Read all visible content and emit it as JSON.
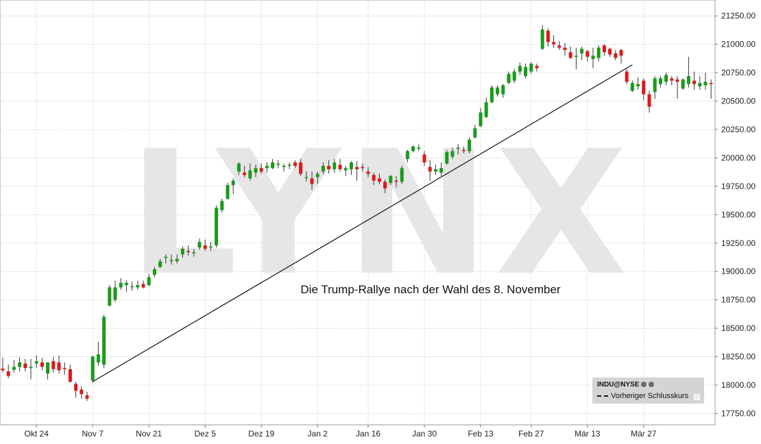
{
  "chart_data": {
    "type": "candlestick",
    "title": "",
    "watermark": "LYNX",
    "annotation": "Die Trump-Rallye nach der Wahl des 8. November",
    "ylim": [
      17650,
      21390
    ],
    "y_ticks": [
      "17750.00",
      "18000.00",
      "18250.00",
      "18500.00",
      "18750.00",
      "19000.00",
      "19250.00",
      "19500.00",
      "19750.00",
      "20000.00",
      "20250.00",
      "20500.00",
      "20750.00",
      "21000.00",
      "21250.00"
    ],
    "y_tick_values": [
      17750,
      18000,
      18250,
      18500,
      18750,
      19000,
      19250,
      19500,
      19750,
      20000,
      20250,
      20500,
      20750,
      21000,
      21250
    ],
    "x_ticks": [
      {
        "label": "Okt 24",
        "index": 6
      },
      {
        "label": "Nov 7",
        "index": 16
      },
      {
        "label": "Nov 21",
        "index": 26
      },
      {
        "label": "Dez 5",
        "index": 36
      },
      {
        "label": "Dez 19",
        "index": 46
      },
      {
        "label": "Jan 2",
        "index": 56
      },
      {
        "label": "Jan 16",
        "index": 65
      },
      {
        "label": "Jan 30",
        "index": 75
      },
      {
        "label": "Feb 13",
        "index": 85
      },
      {
        "label": "Feb 27",
        "index": 94
      },
      {
        "label": "Mär 13",
        "index": 104
      },
      {
        "label": "Mär 27",
        "index": 114
      }
    ],
    "candles": [
      {
        "o": 18145,
        "h": 18240,
        "l": 18110,
        "c": 18130
      },
      {
        "o": 18120,
        "h": 18180,
        "l": 18060,
        "c": 18080
      },
      {
        "o": 18135,
        "h": 18220,
        "l": 18110,
        "c": 18160
      },
      {
        "o": 18160,
        "h": 18245,
        "l": 18120,
        "c": 18200
      },
      {
        "o": 18190,
        "h": 18230,
        "l": 18120,
        "c": 18150
      },
      {
        "o": 18150,
        "h": 18230,
        "l": 18050,
        "c": 18160
      },
      {
        "o": 18190,
        "h": 18260,
        "l": 18150,
        "c": 18210
      },
      {
        "o": 18200,
        "h": 18240,
        "l": 18130,
        "c": 18160
      },
      {
        "o": 18100,
        "h": 18200,
        "l": 18050,
        "c": 18200
      },
      {
        "o": 18210,
        "h": 18250,
        "l": 18110,
        "c": 18140
      },
      {
        "o": 18200,
        "h": 18260,
        "l": 18100,
        "c": 18130
      },
      {
        "o": 18150,
        "h": 18200,
        "l": 18090,
        "c": 18140
      },
      {
        "o": 18140,
        "h": 18180,
        "l": 18020,
        "c": 18030
      },
      {
        "o": 18010,
        "h": 18030,
        "l": 17890,
        "c": 17950
      },
      {
        "o": 17960,
        "h": 17990,
        "l": 17880,
        "c": 17920
      },
      {
        "o": 17910,
        "h": 17940,
        "l": 17860,
        "c": 17880
      },
      {
        "o": 18040,
        "h": 18260,
        "l": 18020,
        "c": 18250
      },
      {
        "o": 18200,
        "h": 18380,
        "l": 18170,
        "c": 18270
      },
      {
        "o": 18180,
        "h": 18620,
        "l": 18150,
        "c": 18600
      },
      {
        "o": 18700,
        "h": 18880,
        "l": 18690,
        "c": 18860
      },
      {
        "o": 18750,
        "h": 18920,
        "l": 18730,
        "c": 18860
      },
      {
        "o": 18860,
        "h": 18940,
        "l": 18840,
        "c": 18900
      },
      {
        "o": 18880,
        "h": 18920,
        "l": 18820,
        "c": 18900
      },
      {
        "o": 18870,
        "h": 18910,
        "l": 18830,
        "c": 18870
      },
      {
        "o": 18860,
        "h": 18920,
        "l": 18840,
        "c": 18880
      },
      {
        "o": 18890,
        "h": 18920,
        "l": 18850,
        "c": 18860
      },
      {
        "o": 18880,
        "h": 18980,
        "l": 18870,
        "c": 18950
      },
      {
        "o": 18970,
        "h": 19040,
        "l": 18950,
        "c": 19020
      },
      {
        "o": 19040,
        "h": 19110,
        "l": 19030,
        "c": 19090
      },
      {
        "o": 19120,
        "h": 19150,
        "l": 19070,
        "c": 19130
      },
      {
        "o": 19090,
        "h": 19150,
        "l": 19060,
        "c": 19100
      },
      {
        "o": 19090,
        "h": 19150,
        "l": 19070,
        "c": 19110
      },
      {
        "o": 19150,
        "h": 19220,
        "l": 19120,
        "c": 19200
      },
      {
        "o": 19180,
        "h": 19230,
        "l": 19140,
        "c": 19170
      },
      {
        "o": 19160,
        "h": 19200,
        "l": 19130,
        "c": 19170
      },
      {
        "o": 19210,
        "h": 19290,
        "l": 19190,
        "c": 19260
      },
      {
        "o": 19230,
        "h": 19280,
        "l": 19180,
        "c": 19200
      },
      {
        "o": 19210,
        "h": 19260,
        "l": 19180,
        "c": 19220
      },
      {
        "o": 19230,
        "h": 19580,
        "l": 19210,
        "c": 19560
      },
      {
        "o": 19540,
        "h": 19640,
        "l": 19520,
        "c": 19620
      },
      {
        "o": 19640,
        "h": 19780,
        "l": 19630,
        "c": 19760
      },
      {
        "o": 19760,
        "h": 19820,
        "l": 19680,
        "c": 19800
      },
      {
        "o": 19880,
        "h": 19960,
        "l": 19850,
        "c": 19950
      },
      {
        "o": 19870,
        "h": 19930,
        "l": 19830,
        "c": 19850
      },
      {
        "o": 19820,
        "h": 19950,
        "l": 19800,
        "c": 19890
      },
      {
        "o": 19870,
        "h": 19940,
        "l": 19830,
        "c": 19910
      },
      {
        "o": 19910,
        "h": 19950,
        "l": 19860,
        "c": 19880
      },
      {
        "o": 19910,
        "h": 19960,
        "l": 19870,
        "c": 19930
      },
      {
        "o": 19910,
        "h": 19990,
        "l": 19900,
        "c": 19960
      },
      {
        "o": 19940,
        "h": 19980,
        "l": 19910,
        "c": 19950
      },
      {
        "o": 19920,
        "h": 19950,
        "l": 19880,
        "c": 19930
      },
      {
        "o": 19930,
        "h": 19960,
        "l": 19900,
        "c": 19940
      },
      {
        "o": 19960,
        "h": 19980,
        "l": 19910,
        "c": 19930
      },
      {
        "o": 19960,
        "h": 19990,
        "l": 19840,
        "c": 19860
      },
      {
        "o": 19830,
        "h": 19880,
        "l": 19790,
        "c": 19830
      },
      {
        "o": 19820,
        "h": 19880,
        "l": 19720,
        "c": 19770
      },
      {
        "o": 19830,
        "h": 19880,
        "l": 19770,
        "c": 19860
      },
      {
        "o": 19880,
        "h": 19960,
        "l": 19860,
        "c": 19930
      },
      {
        "o": 19930,
        "h": 19980,
        "l": 19860,
        "c": 19900
      },
      {
        "o": 19900,
        "h": 19990,
        "l": 19870,
        "c": 19960
      },
      {
        "o": 19940,
        "h": 19990,
        "l": 19880,
        "c": 19900
      },
      {
        "o": 19890,
        "h": 19930,
        "l": 19840,
        "c": 19910
      },
      {
        "o": 19900,
        "h": 19970,
        "l": 19850,
        "c": 19960
      },
      {
        "o": 19920,
        "h": 19970,
        "l": 19800,
        "c": 19900
      },
      {
        "o": 19920,
        "h": 19950,
        "l": 19880,
        "c": 19910
      },
      {
        "o": 19880,
        "h": 19920,
        "l": 19830,
        "c": 19860
      },
      {
        "o": 19850,
        "h": 19870,
        "l": 19760,
        "c": 19800
      },
      {
        "o": 19820,
        "h": 19860,
        "l": 19770,
        "c": 19790
      },
      {
        "o": 19790,
        "h": 19810,
        "l": 19690,
        "c": 19730
      },
      {
        "o": 19780,
        "h": 19850,
        "l": 19760,
        "c": 19840
      },
      {
        "o": 19800,
        "h": 19840,
        "l": 19740,
        "c": 19790
      },
      {
        "o": 19790,
        "h": 19930,
        "l": 19770,
        "c": 19910
      },
      {
        "o": 19990,
        "h": 20070,
        "l": 19960,
        "c": 20060
      },
      {
        "o": 20060,
        "h": 20110,
        "l": 20050,
        "c": 20100
      },
      {
        "o": 20080,
        "h": 20120,
        "l": 20060,
        "c": 20090
      },
      {
        "o": 20030,
        "h": 20060,
        "l": 19930,
        "c": 19960
      },
      {
        "o": 19920,
        "h": 19980,
        "l": 19800,
        "c": 19880
      },
      {
        "o": 19880,
        "h": 19940,
        "l": 19850,
        "c": 19900
      },
      {
        "o": 19870,
        "h": 19960,
        "l": 19840,
        "c": 19910
      },
      {
        "o": 19950,
        "h": 20070,
        "l": 19940,
        "c": 20050
      },
      {
        "o": 20010,
        "h": 20090,
        "l": 19990,
        "c": 20060
      },
      {
        "o": 20080,
        "h": 20120,
        "l": 20030,
        "c": 20090
      },
      {
        "o": 20070,
        "h": 20100,
        "l": 20040,
        "c": 20060
      },
      {
        "o": 20060,
        "h": 20180,
        "l": 20040,
        "c": 20160
      },
      {
        "o": 20180,
        "h": 20290,
        "l": 20170,
        "c": 20260
      },
      {
        "o": 20280,
        "h": 20440,
        "l": 20270,
        "c": 20400
      },
      {
        "o": 20360,
        "h": 20530,
        "l": 20350,
        "c": 20490
      },
      {
        "o": 20490,
        "h": 20640,
        "l": 20480,
        "c": 20620
      },
      {
        "o": 20560,
        "h": 20640,
        "l": 20540,
        "c": 20620
      },
      {
        "o": 20560,
        "h": 20650,
        "l": 20530,
        "c": 20640
      },
      {
        "o": 20660,
        "h": 20760,
        "l": 20650,
        "c": 20740
      },
      {
        "o": 20680,
        "h": 20780,
        "l": 20660,
        "c": 20760
      },
      {
        "o": 20760,
        "h": 20840,
        "l": 20730,
        "c": 20810
      },
      {
        "o": 20720,
        "h": 20830,
        "l": 20700,
        "c": 20800
      },
      {
        "o": 20760,
        "h": 20840,
        "l": 20740,
        "c": 20830
      },
      {
        "o": 20810,
        "h": 20830,
        "l": 20760,
        "c": 20790
      },
      {
        "o": 20960,
        "h": 21170,
        "l": 20950,
        "c": 21130
      },
      {
        "o": 21120,
        "h": 21140,
        "l": 20980,
        "c": 21020
      },
      {
        "o": 21020,
        "h": 21080,
        "l": 20970,
        "c": 21000
      },
      {
        "o": 20990,
        "h": 21030,
        "l": 20950,
        "c": 20970
      },
      {
        "o": 20970,
        "h": 21010,
        "l": 20900,
        "c": 20950
      },
      {
        "o": 20930,
        "h": 20980,
        "l": 20870,
        "c": 20880
      },
      {
        "o": 20890,
        "h": 20970,
        "l": 20780,
        "c": 20900
      },
      {
        "o": 20920,
        "h": 20980,
        "l": 20860,
        "c": 20960
      },
      {
        "o": 20940,
        "h": 20950,
        "l": 20850,
        "c": 20890
      },
      {
        "o": 20870,
        "h": 20970,
        "l": 20790,
        "c": 20900
      },
      {
        "o": 20880,
        "h": 20990,
        "l": 20850,
        "c": 20970
      },
      {
        "o": 20990,
        "h": 21000,
        "l": 20900,
        "c": 20930
      },
      {
        "o": 20960,
        "h": 20970,
        "l": 20890,
        "c": 20910
      },
      {
        "o": 20920,
        "h": 20950,
        "l": 20860,
        "c": 20880
      },
      {
        "o": 20950,
        "h": 20960,
        "l": 20830,
        "c": 20900
      },
      {
        "o": 20760,
        "h": 20780,
        "l": 20650,
        "c": 20670
      },
      {
        "o": 20590,
        "h": 20680,
        "l": 20580,
        "c": 20660
      },
      {
        "o": 20630,
        "h": 20710,
        "l": 20600,
        "c": 20650
      },
      {
        "o": 20680,
        "h": 20700,
        "l": 20510,
        "c": 20560
      },
      {
        "o": 20560,
        "h": 20590,
        "l": 20400,
        "c": 20450
      },
      {
        "o": 20580,
        "h": 20720,
        "l": 20520,
        "c": 20700
      },
      {
        "o": 20650,
        "h": 20720,
        "l": 20620,
        "c": 20700
      },
      {
        "o": 20670,
        "h": 20750,
        "l": 20640,
        "c": 20730
      },
      {
        "o": 20700,
        "h": 20720,
        "l": 20640,
        "c": 20680
      },
      {
        "o": 20690,
        "h": 20720,
        "l": 20520,
        "c": 20670
      },
      {
        "o": 20610,
        "h": 20700,
        "l": 20600,
        "c": 20690
      },
      {
        "o": 20650,
        "h": 20890,
        "l": 20620,
        "c": 20720
      },
      {
        "o": 20680,
        "h": 20760,
        "l": 20600,
        "c": 20650
      },
      {
        "o": 20630,
        "h": 20720,
        "l": 20600,
        "c": 20660
      },
      {
        "o": 20640,
        "h": 20750,
        "l": 20600,
        "c": 20670
      },
      {
        "o": 20660,
        "h": 20690,
        "l": 20520,
        "c": 20650
      }
    ],
    "trendline": {
      "from": [
        16,
        18030
      ],
      "to": [
        112,
        20820
      ]
    },
    "colors": {
      "up": "#1a9a1a",
      "down": "#e01818",
      "grid": "#bfbfbf",
      "wick": "#333333",
      "trendline": "#111111"
    },
    "grid": true,
    "legend": {
      "placement": "bottom-right",
      "symbol": "INDU@NYSE",
      "items": [
        {
          "name": "Vorheriger Schlusskurs",
          "style": "dashed"
        }
      ]
    }
  }
}
